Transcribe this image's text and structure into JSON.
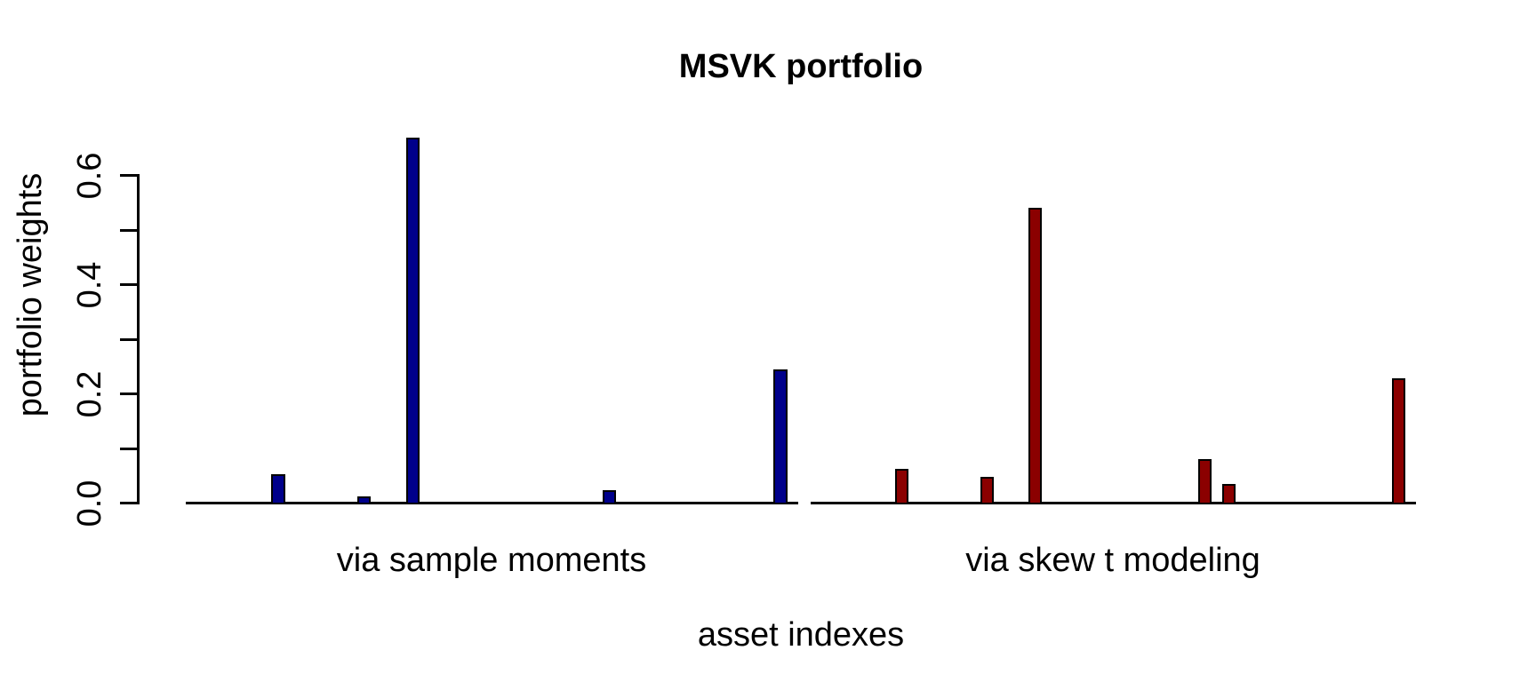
{
  "chart_data": {
    "type": "bar",
    "title": "MSVK portfolio",
    "xlabel": "asset indexes",
    "ylabel": "portfolio weights",
    "ylim": [
      0,
      0.7
    ],
    "grid": false,
    "legend": "none",
    "yticks": [
      {
        "value": 0.0,
        "label": "0.0"
      },
      {
        "value": 0.1,
        "label": ""
      },
      {
        "value": 0.2,
        "label": "0.2"
      },
      {
        "value": 0.3,
        "label": ""
      },
      {
        "value": 0.4,
        "label": "0.4"
      },
      {
        "value": 0.5,
        "label": ""
      },
      {
        "value": 0.6,
        "label": "0.6"
      }
    ],
    "slots_per_group": 50,
    "groups": [
      {
        "label": "via sample moments",
        "color": "#00008B",
        "bars": [
          {
            "asset_index": 8,
            "weight": 0.053
          },
          {
            "asset_index": 15,
            "weight": 0.012
          },
          {
            "asset_index": 19,
            "weight": 0.669
          },
          {
            "asset_index": 35,
            "weight": 0.023
          },
          {
            "asset_index": 49,
            "weight": 0.245
          }
        ]
      },
      {
        "label": "via skew t modeling",
        "color": "#8B0000",
        "bars": [
          {
            "asset_index": 8,
            "weight": 0.063
          },
          {
            "asset_index": 15,
            "weight": 0.048
          },
          {
            "asset_index": 19,
            "weight": 0.54
          },
          {
            "asset_index": 33,
            "weight": 0.081
          },
          {
            "asset_index": 35,
            "weight": 0.035
          },
          {
            "asset_index": 49,
            "weight": 0.229
          }
        ]
      }
    ]
  }
}
